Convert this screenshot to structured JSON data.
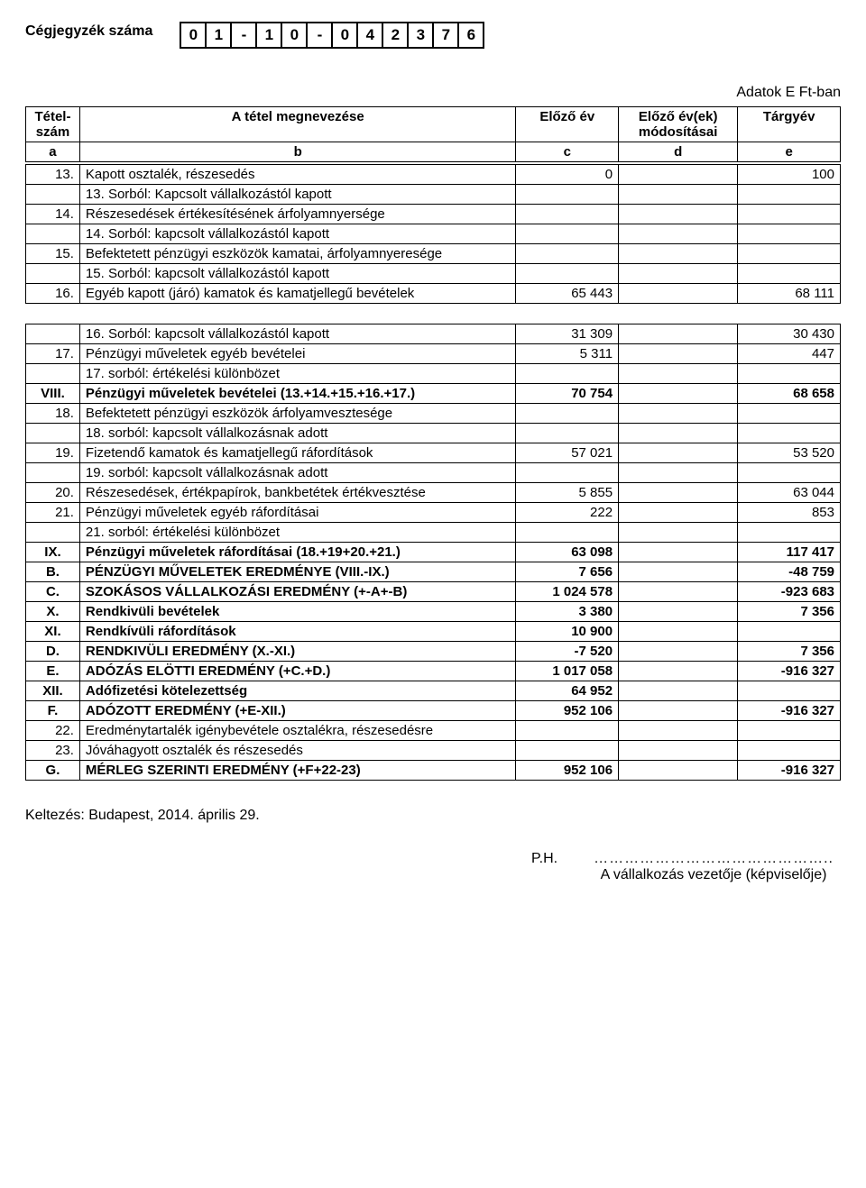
{
  "header": {
    "reg_label": "Cégjegyzék száma",
    "reg_digits": [
      "0",
      "1",
      "-",
      "1",
      "0",
      "-",
      "0",
      "4",
      "2",
      "3",
      "7",
      "6"
    ],
    "units": "Adatok E Ft-ban"
  },
  "table": {
    "headers": {
      "col_a1": "Tétel-",
      "col_a2": "szám",
      "col_b": "A tétel megnevezése",
      "col_c": "Előző év",
      "col_d1": "Előző év(ek)",
      "col_d2": "módosításai",
      "col_e": "Tárgyév",
      "letters": [
        "a",
        "b",
        "c",
        "d",
        "e"
      ]
    },
    "rows": [
      {
        "id": "13.",
        "name": "Kapott osztalék, részesedés",
        "c": "0",
        "e": "100"
      },
      {
        "noId": true,
        "indent": true,
        "name": "13. Sorból: Kapcsolt vállalkozástól kapott"
      },
      {
        "id": "14.",
        "name": "Részesedések értékesítésének árfolyamnyersége"
      },
      {
        "noId": true,
        "indent": true,
        "name": "14. Sorból: kapcsolt vállalkozástól kapott"
      },
      {
        "id": "15.",
        "name": "Befektetett pénzügyi eszközök kamatai, árfolyamnyeresége"
      },
      {
        "noId": true,
        "indent": true,
        "name": "15. Sorból: kapcsolt vállalkozástól kapott"
      },
      {
        "id": "16.",
        "name": "Egyéb kapott (járó) kamatok és kamatjellegű bevételek",
        "c": "65 443",
        "e": "68 111",
        "gapAfter": true
      },
      {
        "noId": true,
        "indent": true,
        "name": "16. Sorból: kapcsolt vállalkozástól kapott",
        "c": "31 309",
        "e": "30 430"
      },
      {
        "id": "17.",
        "name": "Pénzügyi műveletek egyéb bevételei",
        "c": "5 311",
        "e": "447"
      },
      {
        "noId": true,
        "indent": true,
        "name": "17. sorból: értékelési különbözet"
      },
      {
        "id": "VIII.",
        "idCenter": true,
        "bold": true,
        "name": "Pénzügyi műveletek bevételei (13.+14.+15.+16.+17.)",
        "c": "70 754",
        "e": "68 658"
      },
      {
        "id": "18.",
        "name": "Befektetett pénzügyi eszközök árfolyamvesztesége"
      },
      {
        "noId": true,
        "indent": true,
        "name": "18. sorból: kapcsolt vállalkozásnak adott"
      },
      {
        "id": "19.",
        "name": "Fizetendő kamatok és kamatjellegű ráfordítások",
        "c": "57 021",
        "e": "53 520"
      },
      {
        "noId": true,
        "indent": true,
        "name": "19. sorból: kapcsolt vállalkozásnak adott"
      },
      {
        "id": "20.",
        "name": "Részesedések, értékpapírok, bankbetétek értékvesztése",
        "c": "5 855",
        "e": "63 044"
      },
      {
        "id": "21.",
        "name": "Pénzügyi műveletek egyéb ráfordításai",
        "c": "222",
        "e": "853"
      },
      {
        "noId": true,
        "indent": true,
        "name": "21. sorból: értékelési különbözet"
      },
      {
        "id": "IX.",
        "idCenter": true,
        "bold": true,
        "name": "Pénzügyi műveletek ráfordításai (18.+19+20.+21.)",
        "c": "63 098",
        "e": "117 417"
      },
      {
        "id": "B.",
        "idCenter": true,
        "bold": true,
        "name": "PÉNZÜGYI MŰVELETEK EREDMÉNYE (VIII.-IX.)",
        "c": "7 656",
        "e": "-48 759"
      },
      {
        "id": "C.",
        "idCenter": true,
        "bold": true,
        "name": "SZOKÁSOS VÁLLALKOZÁSI EREDMÉNY (+-A+-B)",
        "c": "1 024 578",
        "e": "-923 683"
      },
      {
        "id": "X.",
        "idCenter": true,
        "bold": true,
        "name": "Rendkivüli bevételek",
        "c": "3 380",
        "e": "7 356"
      },
      {
        "id": "XI.",
        "idCenter": true,
        "bold": true,
        "name": "Rendkívüli ráfordítások",
        "c": "10 900"
      },
      {
        "id": "D.",
        "idCenter": true,
        "bold": true,
        "name": "RENDKIVÜLI EREDMÉNY (X.-XI.)",
        "c": "-7 520",
        "e": "7 356"
      },
      {
        "id": "E.",
        "idCenter": true,
        "bold": true,
        "name": "ADÓZÁS ELÖTTI EREDMÉNY (+C.+D.)",
        "c": "1 017 058",
        "e": "-916 327"
      },
      {
        "id": "XII.",
        "idCenter": true,
        "bold": true,
        "name": "Adófizetési kötelezettség",
        "c": "64 952"
      },
      {
        "id": "F.",
        "idCenter": true,
        "bold": true,
        "name": "ADÓZOTT EREDMÉNY (+E-XII.)",
        "c": "952 106",
        "e": "-916 327"
      },
      {
        "id": "22.",
        "name": "Eredménytartalék igénybevétele osztalékra, részesedésre"
      },
      {
        "id": "23.",
        "name": "Jóváhagyott osztalék és részesedés"
      },
      {
        "id": "G.",
        "idCenter": true,
        "bold": true,
        "name": "MÉRLEG SZERINTI EREDMÉNY (+F+22-23)",
        "c": "952 106",
        "e": "-916 327"
      }
    ]
  },
  "footer": {
    "dated": "Keltezés: Budapest, 2014. április 29.",
    "ph": "P.H.",
    "dots": "………………………………………..",
    "sig": "A vállalkozás vezetője (képviselője)"
  }
}
